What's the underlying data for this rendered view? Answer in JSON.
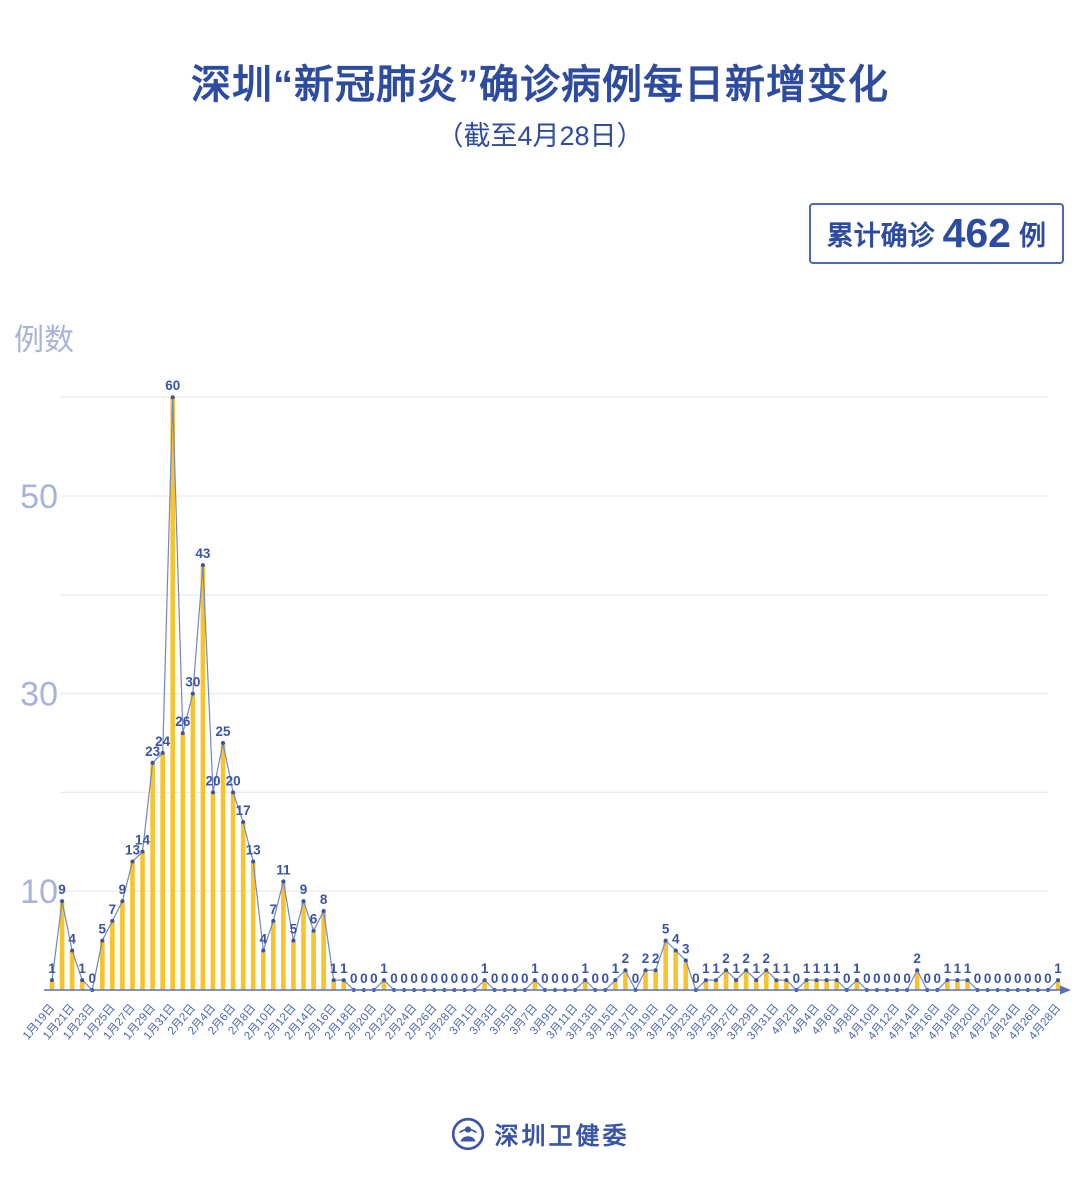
{
  "header": {
    "title": "深圳“新冠肺炎”确诊病例每日新增变化",
    "subtitle": "（截至4月28日）",
    "badge": {
      "prefix": "累计确诊",
      "value": "462",
      "suffix": "例"
    }
  },
  "chart_data": {
    "type": "bar",
    "line_overlay": true,
    "title": "深圳“新冠肺炎”确诊病例每日新增变化",
    "subtitle": "（截至4月28日）",
    "ylabel": "例数",
    "xlabel": "",
    "x_start": "1月19日",
    "x_end": "4月28日",
    "x_tick_labels": [
      "1月19日",
      "1月21日",
      "1月23日",
      "1月25日",
      "1月27日",
      "1月29日",
      "1月31日",
      "2月2日",
      "2月4日",
      "2月6日",
      "2月8日",
      "2月10日",
      "2月12日",
      "2月14日",
      "2月16日",
      "2月18日",
      "2月20日",
      "2月22日",
      "2月24日",
      "2月26日",
      "2月28日",
      "3月1日",
      "3月3日",
      "3月5日",
      "3月7日",
      "3月9日",
      "3月11日",
      "3月13日",
      "3月15日",
      "3月17日",
      "3月19日",
      "3月21日",
      "3月23日",
      "3月25日",
      "3月27日",
      "3月29日",
      "3月31日",
      "4月2日",
      "4月4日",
      "4月6日",
      "4月8日",
      "4月10日",
      "4月12日",
      "4月14日",
      "4月16日",
      "4月18日",
      "4月20日",
      "4月22日",
      "4月24日",
      "4月26日",
      "4月28日"
    ],
    "values": [
      1,
      9,
      4,
      1,
      0,
      5,
      7,
      9,
      13,
      14,
      23,
      24,
      60,
      26,
      30,
      43,
      20,
      25,
      20,
      17,
      13,
      4,
      7,
      11,
      5,
      9,
      6,
      8,
      1,
      1,
      0,
      0,
      0,
      1,
      0,
      0,
      0,
      0,
      0,
      0,
      0,
      0,
      0,
      1,
      0,
      0,
      0,
      0,
      1,
      0,
      0,
      0,
      0,
      1,
      0,
      0,
      1,
      2,
      0,
      2,
      2,
      5,
      4,
      3,
      0,
      1,
      1,
      2,
      1,
      2,
      1,
      2,
      1,
      1,
      0,
      1,
      1,
      1,
      1,
      0,
      1,
      0,
      0,
      0,
      0,
      0,
      2,
      0,
      0,
      1,
      1,
      1,
      0,
      0,
      0,
      0,
      0,
      0,
      0,
      0,
      1
    ],
    "total": 462,
    "y_axis_ticks_labeled": [
      10,
      30,
      50
    ],
    "gridlines": [
      10,
      20,
      30,
      40,
      50,
      60
    ],
    "ylim": [
      0,
      62
    ],
    "grid_on": true,
    "legend": "none",
    "colors": {
      "bar": "#f8c32b",
      "line": "#7288c4",
      "marker": "#3a54a6",
      "value_label": "#3a54a6",
      "axis": "#5671b6",
      "tick_label": "#4b67b2",
      "grid": "#ebebf1",
      "y_label": "#a9b2d9",
      "title": "#2e4c9f"
    }
  },
  "footer": {
    "logo_text": "深圳卫健委"
  }
}
